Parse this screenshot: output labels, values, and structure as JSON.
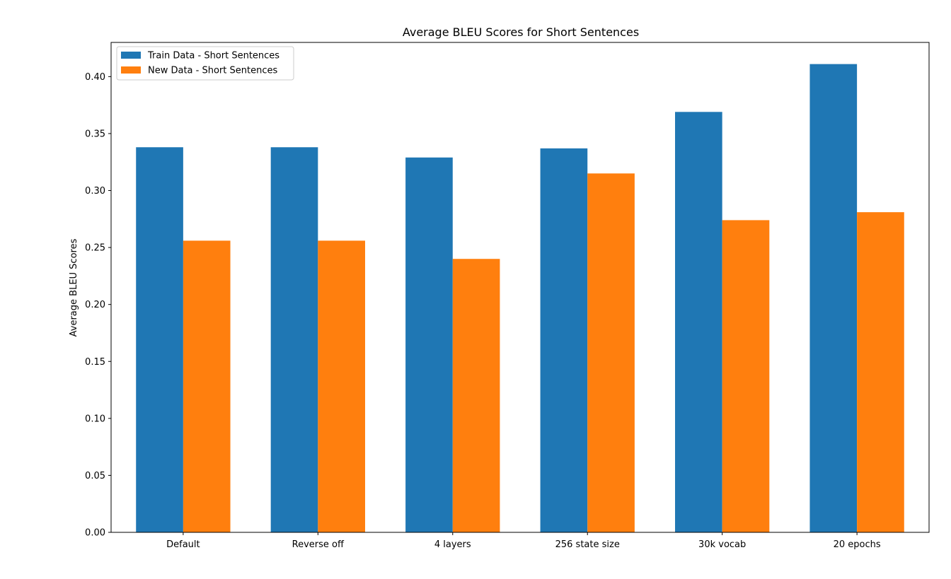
{
  "chart_data": {
    "type": "bar",
    "title": "Average BLEU Scores for Short Sentences",
    "xlabel": "",
    "ylabel": "Average BLEU Scores",
    "categories": [
      "Default",
      "Reverse off",
      "4 layers",
      "256 state size",
      "30k vocab",
      "20 epochs"
    ],
    "series": [
      {
        "name": "Train Data - Short Sentences",
        "color": "#1f77b4",
        "values": [
          0.338,
          0.338,
          0.329,
          0.337,
          0.369,
          0.411
        ]
      },
      {
        "name": "New Data - Short Sentences",
        "color": "#ff7f0e",
        "values": [
          0.256,
          0.256,
          0.24,
          0.315,
          0.274,
          0.281
        ]
      }
    ],
    "ylim": [
      0,
      0.43
    ],
    "yticks": [
      "0.00",
      "0.05",
      "0.10",
      "0.15",
      "0.20",
      "0.25",
      "0.30",
      "0.35",
      "0.40"
    ],
    "grid": false,
    "legend_position": "upper left"
  }
}
